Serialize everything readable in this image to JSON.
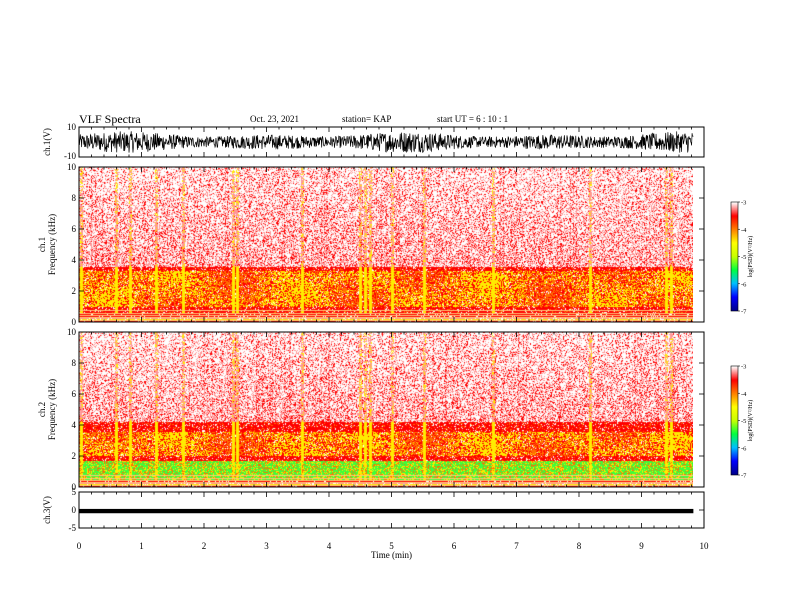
{
  "header": {
    "title": "VLF Spectra",
    "date": "Oct. 23, 2021",
    "station": "station= KAP",
    "start_ut": "start  UT =  6 : 10 : 1"
  },
  "chart_data": [
    {
      "type": "line",
      "panel": "ch1-waveform",
      "ylabel": "ch.1(V)",
      "ylim": [
        -10,
        10
      ],
      "y_tick_labels": [
        "10",
        "-10"
      ],
      "signal": "dense noise filling the panel, roughly -7 to +7 V",
      "x_range_min": [
        0,
        9.83
      ]
    },
    {
      "type": "heatmap",
      "panel": "ch1-spectrogram",
      "ylabel": "ch.1",
      "ylabel2": "Frequency (kHz)",
      "y_tick_labels": [
        "0",
        "2",
        "4",
        "6",
        "8",
        "10"
      ],
      "ylim": [
        0,
        10
      ],
      "x_range_min": [
        0,
        9.83
      ],
      "colorbar": {
        "label": "log(PSD)(V²/Hz)",
        "range": [
          -7,
          -3
        ],
        "tick_labels": [
          "-3",
          "-4",
          "-5",
          "-6",
          "-7"
        ]
      },
      "features": {
        "low_band_khz": [
          0,
          0.6
        ],
        "yellow_band_khz": [
          1.0,
          3.3
        ],
        "strong_red_khz": [
          0.6,
          3.6
        ],
        "background": "speckled red / white, log PSD about -3 to -4",
        "impulsive_lines_min": [
          0.03,
          0.59,
          0.81,
          1.23,
          1.67,
          2.47,
          2.52,
          3.56,
          4.5,
          4.57,
          4.66,
          5.0,
          5.52,
          6.62,
          8.17,
          9.39,
          9.47
        ]
      }
    },
    {
      "type": "heatmap",
      "panel": "ch2-spectrogram",
      "ylabel": "ch.2",
      "ylabel2": "Frequency (kHz)",
      "y_tick_labels": [
        "0",
        "2",
        "4",
        "6",
        "8",
        "10"
      ],
      "ylim": [
        0,
        10
      ],
      "x_range_min": [
        0,
        9.83
      ],
      "colorbar": {
        "label": "log(PSD)(V²/Hz)",
        "range": [
          -7,
          -3
        ],
        "tick_labels": [
          "-3",
          "-4",
          "-5",
          "-6",
          "-7"
        ]
      },
      "features": {
        "low_band_khz": [
          0,
          0.5
        ],
        "green_band_khz": [
          0.5,
          1.7
        ],
        "yellow_band_khz": [
          2.0,
          3.6
        ],
        "strong_red_khz": [
          1.7,
          4.2
        ],
        "background": "speckled red / white, log PSD about -3 to -4",
        "impulsive_lines_min": [
          0.03,
          0.59,
          0.81,
          1.23,
          1.67,
          2.47,
          2.52,
          3.56,
          4.5,
          4.57,
          4.66,
          5.0,
          5.52,
          6.62,
          8.17,
          9.39,
          9.47
        ]
      }
    },
    {
      "type": "line",
      "panel": "ch3-waveform",
      "ylabel": "ch.3(V)",
      "ylim": [
        -5,
        5
      ],
      "y_tick_labels": [
        "5",
        "0",
        "-5"
      ],
      "signal": "narrow black band around -0.3 V",
      "x_range_min": [
        0,
        9.83
      ]
    }
  ],
  "x_axis": {
    "label": "Time (min)",
    "tick_labels": [
      "0",
      "1",
      "2",
      "3",
      "4",
      "5",
      "6",
      "7",
      "8",
      "9",
      "10"
    ],
    "range": [
      0,
      10
    ]
  },
  "colormap": [
    "#00008b",
    "#0000ff",
    "#00c0ff",
    "#00ff40",
    "#c8ff00",
    "#ffff00",
    "#ff8000",
    "#ff0000",
    "#ffffff"
  ]
}
